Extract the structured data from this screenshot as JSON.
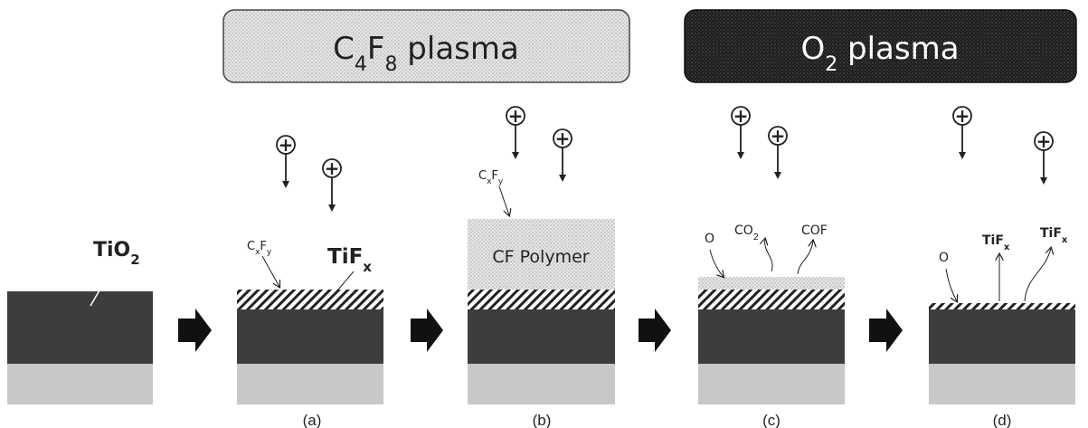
{
  "banners": {
    "c4f8": {
      "main": "C",
      "sub1": "4",
      "mid": "F",
      "sub2": "8",
      "rest": " plasma"
    },
    "o2": {
      "main": "O",
      "sub1": "2",
      "rest": " plasma"
    }
  },
  "initial": {
    "label_main": "TiO",
    "label_sub": "2"
  },
  "panel_a": {
    "cxfy": {
      "c": "C",
      "x": "x",
      "f": "F",
      "y": "y"
    },
    "tifx": {
      "main": "TiF",
      "sub": "x"
    },
    "caption": "(a)"
  },
  "panel_b": {
    "cxfy": {
      "c": "C",
      "x": "x",
      "f": "F",
      "y": "y"
    },
    "polymer": "CF Polymer",
    "caption": "(b)"
  },
  "panel_c": {
    "o": "O",
    "co2": {
      "main": "CO",
      "sub": "2"
    },
    "cof": "COF",
    "caption": "(c)"
  },
  "panel_d": {
    "o": "O",
    "tifx1": {
      "main": "TiF",
      "sub": "x"
    },
    "tifx2": {
      "main": "TiF",
      "sub": "x"
    },
    "caption": "(d)"
  },
  "ion_symbol": "+",
  "colors": {
    "substrate": "#3d3d3d",
    "base": "#c8c8c8",
    "banner_light": "#e2e2e2",
    "banner_dark": "#1e1e1e",
    "polymer": "#e4e4e4"
  }
}
